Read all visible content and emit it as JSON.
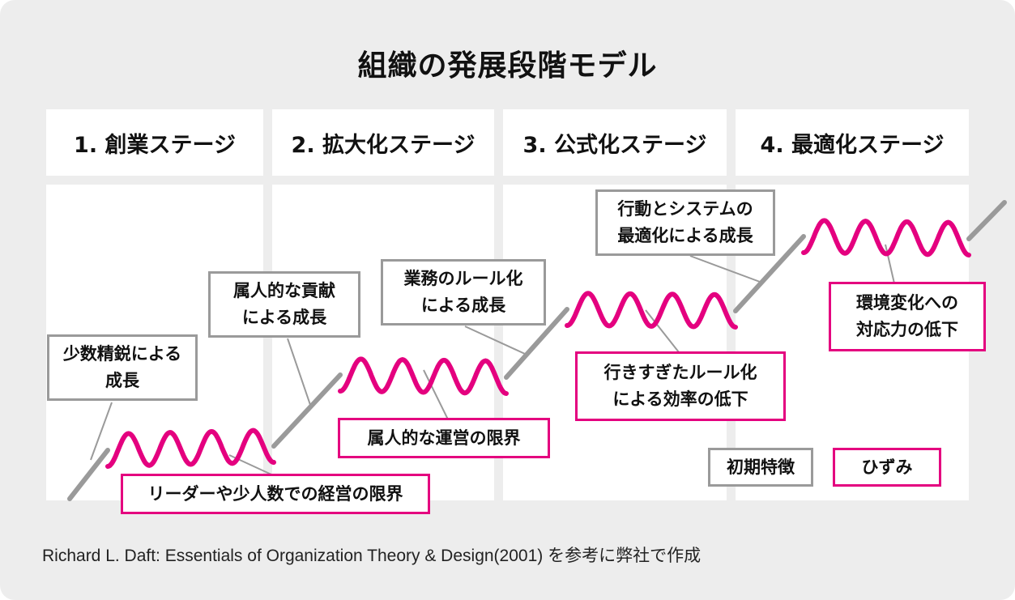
{
  "title": "組織の発展段階モデル",
  "stages": [
    {
      "label": "1. 創業ステージ"
    },
    {
      "label": "2. 拡大化ステージ"
    },
    {
      "label": "3. 公式化ステージ"
    },
    {
      "label": "4. 最適化ステージ"
    }
  ],
  "annotations": {
    "growth_1": "少数精鋭による\n成長",
    "limit_1": "リーダーや少人数での経営の限界",
    "growth_2": "属人的な貢献\nによる成長",
    "limit_2": "属人的な運営の限界",
    "growth_3": "業務のルール化\nによる成長",
    "limit_3": "行きすぎたルール化\nによる効率の低下",
    "growth_4": "行動とシステムの\n最適化による成長",
    "limit_4": "環境変化への\n対応力の低下"
  },
  "legend": {
    "initial": "初期特徴",
    "distortion": "ひずみ"
  },
  "colors": {
    "growth_line": "#9a9a9a",
    "distortion_line": "#e4007f",
    "background": "#ededed",
    "panel": "#ffffff"
  },
  "source": "Richard L. Daft: Essentials of Organization Theory & Design(2001) を参考に弊社で作成"
}
